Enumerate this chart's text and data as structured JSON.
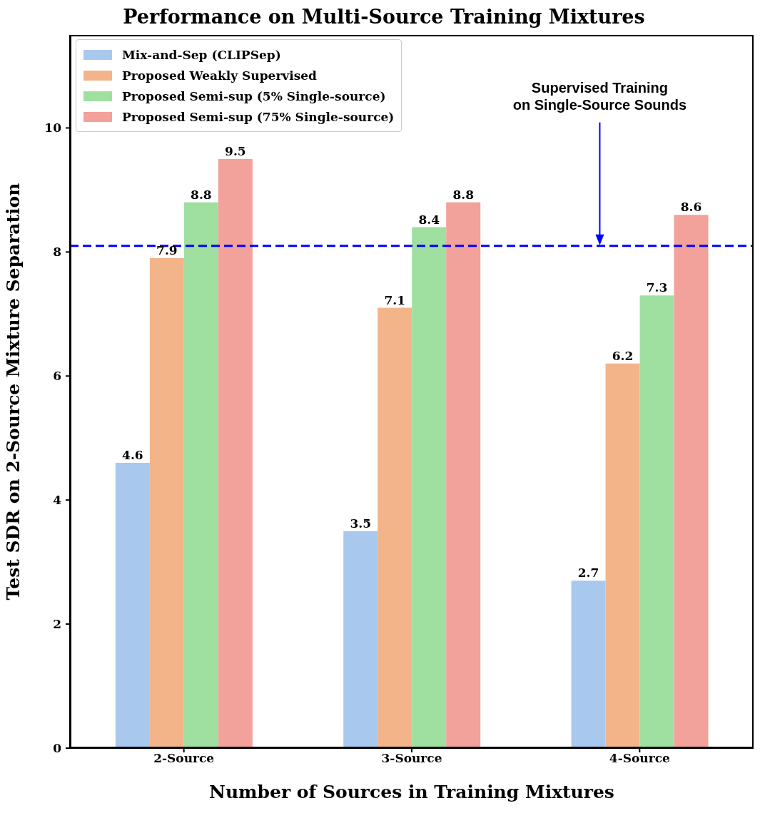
{
  "chart_data": {
    "type": "bar",
    "title": "Performance on Multi-Source Training Mixtures",
    "xlabel": "Number of Sources in Training Mixtures",
    "ylabel": "Test SDR on 2-Source Mixture Separation",
    "categories": [
      "2-Source",
      "3-Source",
      "4-Source"
    ],
    "series": [
      {
        "name": "Mix-and-Sep (CLIPSep)",
        "color": "#a8c8ee",
        "values": [
          4.6,
          3.5,
          2.7
        ]
      },
      {
        "name": "Proposed Weakly Supervised",
        "color": "#f4b48a",
        "values": [
          7.9,
          7.1,
          6.2
        ]
      },
      {
        "name": "Proposed Semi-sup (5% Single-source)",
        "color": "#9fe0a0",
        "values": [
          8.8,
          8.4,
          7.3
        ]
      },
      {
        "name": "Proposed Semi-sup (75% Single-source)",
        "color": "#f2a19b",
        "values": [
          9.5,
          8.8,
          8.6
        ]
      }
    ],
    "ylim": [
      0,
      11.5
    ],
    "yticks": [
      0,
      2,
      4,
      6,
      8,
      10
    ],
    "grid": false,
    "legend": "top left",
    "data_labels": true,
    "ref_lines": [
      {
        "axis": "y",
        "value": 8.1,
        "label": "Supervised Training\non Single-Source Sounds",
        "color": "#0000ff",
        "line_style": "dashed"
      }
    ]
  }
}
